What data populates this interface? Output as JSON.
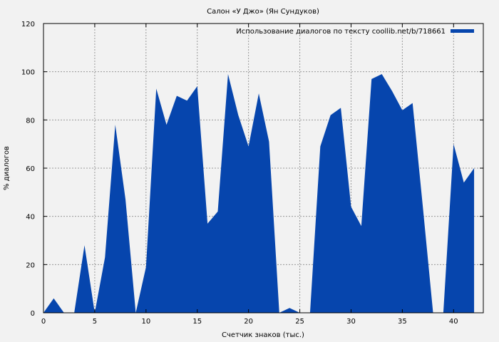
{
  "chart_data": {
    "type": "area",
    "title": "Салон «У Джо» (Ян Сундуков)",
    "xlabel": "Счетчик знаков (тыс.)",
    "ylabel": "% диалогов",
    "xlim": [
      0,
      42.9
    ],
    "ylim": [
      0,
      120
    ],
    "x_ticks": [
      0,
      5,
      10,
      15,
      20,
      25,
      30,
      35,
      40
    ],
    "y_ticks": [
      0,
      20,
      40,
      60,
      80,
      100,
      120
    ],
    "grid": true,
    "legend_position": "top-right",
    "series": [
      {
        "name": "Использование диалогов по тексту coollib.net/b/718661",
        "color": "#0645ad",
        "points": [
          [
            0,
            0
          ],
          [
            1,
            6
          ],
          [
            2,
            0
          ],
          [
            3,
            0
          ],
          [
            4,
            28
          ],
          [
            5,
            0
          ],
          [
            6,
            23
          ],
          [
            7,
            78
          ],
          [
            8,
            47
          ],
          [
            9,
            0
          ],
          [
            10,
            19
          ],
          [
            11,
            93
          ],
          [
            12,
            78
          ],
          [
            13,
            90
          ],
          [
            14,
            88
          ],
          [
            15,
            94
          ],
          [
            16,
            37
          ],
          [
            17,
            42
          ],
          [
            18,
            99
          ],
          [
            19,
            82
          ],
          [
            20,
            69
          ],
          [
            21,
            91
          ],
          [
            22,
            71
          ],
          [
            23,
            0
          ],
          [
            24,
            2
          ],
          [
            25,
            0
          ],
          [
            26,
            0
          ],
          [
            27,
            69
          ],
          [
            28,
            82
          ],
          [
            29,
            85
          ],
          [
            30,
            44
          ],
          [
            31,
            36
          ],
          [
            32,
            97
          ],
          [
            33,
            99
          ],
          [
            34,
            92
          ],
          [
            35,
            84
          ],
          [
            36,
            87
          ],
          [
            37,
            44
          ],
          [
            38,
            0
          ],
          [
            39,
            0
          ],
          [
            40,
            70
          ],
          [
            41,
            54
          ],
          [
            42,
            60
          ]
        ]
      }
    ]
  }
}
